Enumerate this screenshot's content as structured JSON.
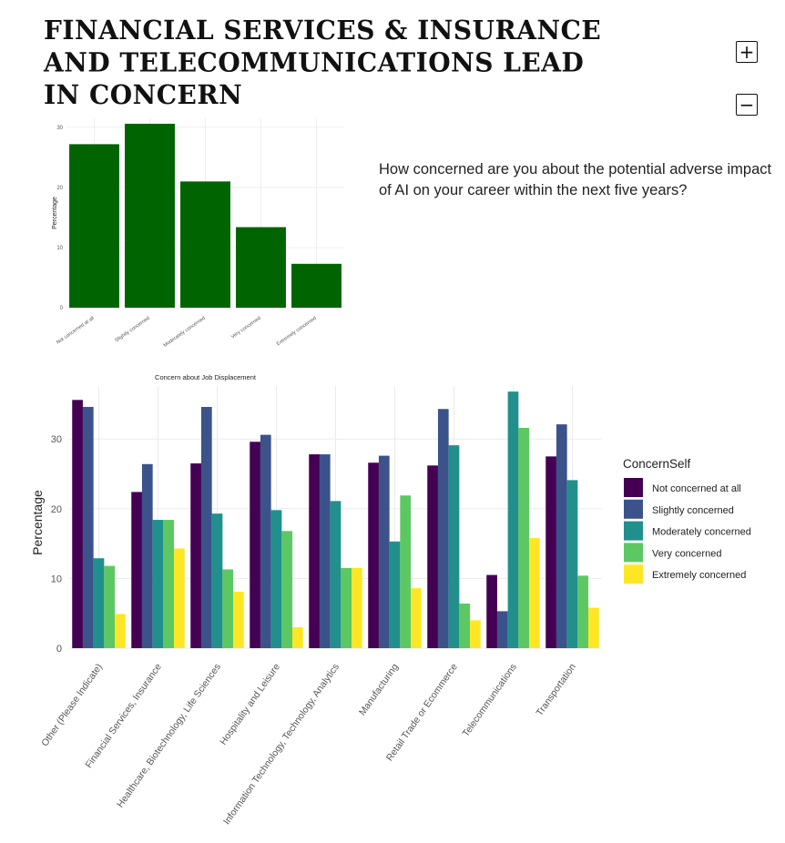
{
  "page": {
    "title": "FINANCIAL SERVICES & INSURANCE AND TELECOMMUNICATIONS LEAD IN CONCERN",
    "question": "How concerned are you about the potential adverse impact of AI on your career within the next five years?",
    "zoom_in_icon": "plus-icon",
    "zoom_out_icon": "minus-icon"
  },
  "colors": {
    "small_bar": "#006400",
    "series": [
      "#440154",
      "#3b528b",
      "#21908c",
      "#5dc863",
      "#fde725"
    ]
  },
  "chart_data": [
    {
      "type": "bar",
      "categories": [
        "Not concerned at all",
        "Slightly concerned",
        "Moderately concerned",
        "Very concerned",
        "Extremely concerned"
      ],
      "values": [
        27.2,
        30.6,
        21.0,
        13.4,
        7.3
      ],
      "xlabel": "Concern about Job Displacement",
      "ylabel": "Percentage",
      "ylim": [
        0,
        31.5
      ],
      "yticks": [
        0,
        10,
        20,
        30
      ],
      "grid": true
    },
    {
      "type": "bar",
      "categories": [
        "Other (Please Indicate)",
        "Financial Services, Insurance",
        "Healthcare, Biotechnology, Life Sciences",
        "Hospitality and Leisure",
        "Information Technology, Technology, Analytics",
        "Manufacturing",
        "Retail Trade or Ecommerce",
        "Telecommunications",
        "Transportation"
      ],
      "series": [
        {
          "name": "Not concerned at all",
          "values": [
            35.6,
            22.4,
            26.5,
            29.6,
            27.8,
            26.6,
            26.2,
            10.5,
            27.5
          ]
        },
        {
          "name": "Slightly concerned",
          "values": [
            34.6,
            26.4,
            34.6,
            30.6,
            27.8,
            27.6,
            34.3,
            5.3,
            32.1
          ]
        },
        {
          "name": "Moderately concerned",
          "values": [
            12.9,
            18.4,
            19.3,
            19.8,
            21.1,
            15.3,
            29.1,
            36.8,
            24.1
          ]
        },
        {
          "name": "Very concerned",
          "values": [
            11.8,
            18.4,
            11.3,
            16.8,
            11.5,
            21.9,
            6.4,
            31.6,
            10.4
          ]
        },
        {
          "name": "Extremely concerned",
          "values": [
            4.9,
            14.3,
            8.1,
            3.0,
            11.5,
            8.6,
            4.0,
            15.8,
            5.8
          ]
        }
      ],
      "ylabel": "Percentage",
      "ylim": [
        0,
        37.6
      ],
      "yticks": [
        0,
        10,
        20,
        30
      ],
      "legend_title": "ConcernSelf",
      "legend_position": "right",
      "grid": true
    }
  ]
}
